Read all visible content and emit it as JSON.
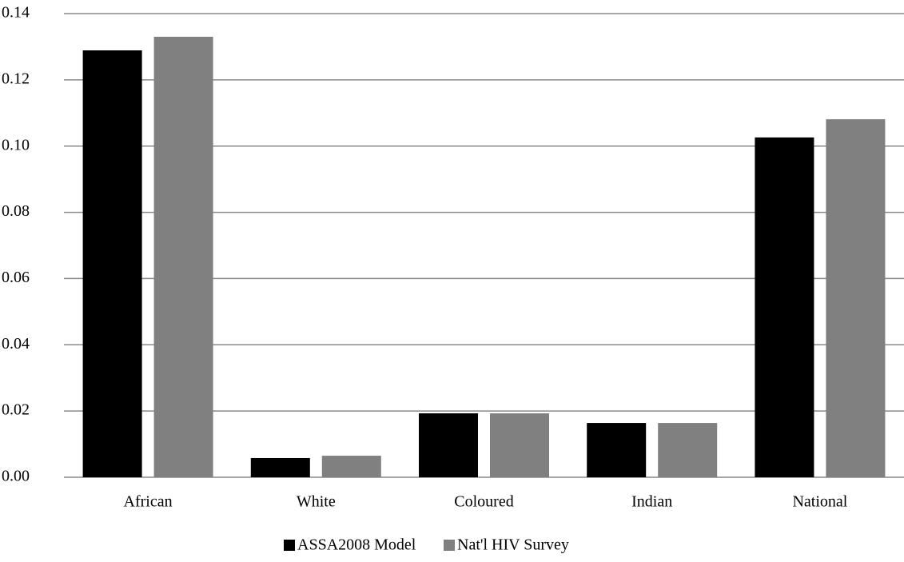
{
  "chart_data": {
    "type": "bar",
    "categories": [
      "African",
      "White",
      "Coloured",
      "Indian",
      "National"
    ],
    "series": [
      {
        "name": "ASSA2008 Model",
        "color": "#000000",
        "values": [
          0.1289,
          0.0058,
          0.0193,
          0.0164,
          0.1026
        ]
      },
      {
        "name": "Nat'l HIV Survey",
        "color": "#808080",
        "values": [
          0.133,
          0.0065,
          0.0193,
          0.0164,
          0.1081
        ]
      }
    ],
    "ylim": [
      0,
      0.14
    ],
    "yticks": [
      {
        "value": 0,
        "label": "0.00"
      },
      0.02,
      0.04,
      0.06,
      0.08,
      {
        "value": 0.1,
        "label": "0.10"
      },
      0.12,
      0.14
    ],
    "grid": true
  }
}
